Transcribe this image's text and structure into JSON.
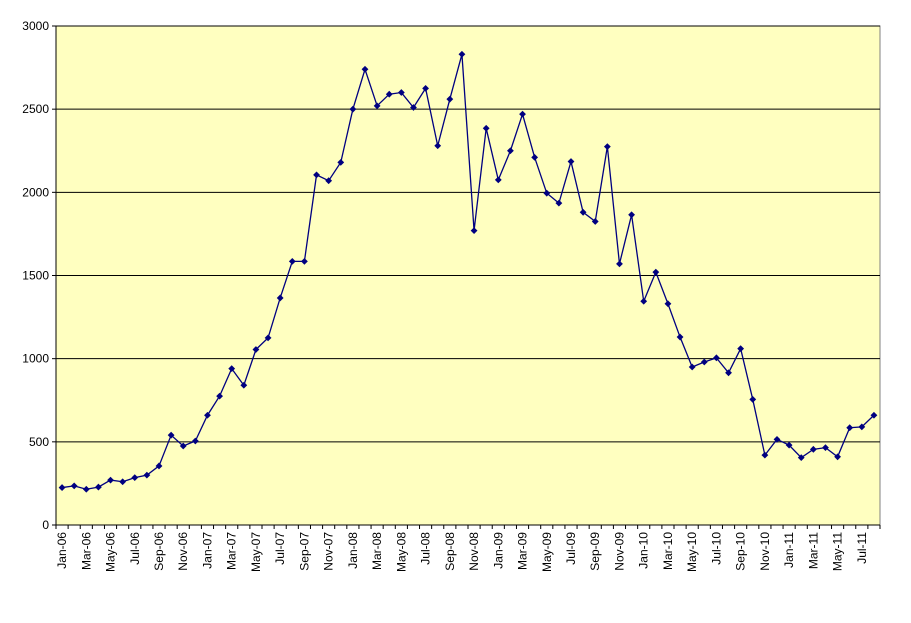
{
  "chart_data": {
    "type": "line",
    "title": "",
    "xlabel": "",
    "ylabel": "",
    "ylim": [
      0,
      3000
    ],
    "yticks": [
      0,
      500,
      1000,
      1500,
      2000,
      2500,
      3000
    ],
    "grid": "horizontal",
    "legend": "none",
    "colors": {
      "plot_background": "#ffffc0",
      "line": "#000080",
      "marker": "#000080",
      "grid": "#000000"
    },
    "x": [
      "Jan-06",
      "Feb-06",
      "Mar-06",
      "Apr-06",
      "May-06",
      "Jun-06",
      "Jul-06",
      "Aug-06",
      "Sep-06",
      "Oct-06",
      "Nov-06",
      "Dec-06",
      "Jan-07",
      "Feb-07",
      "Mar-07",
      "Apr-07",
      "May-07",
      "Jun-07",
      "Jul-07",
      "Aug-07",
      "Sep-07",
      "Oct-07",
      "Nov-07",
      "Dec-07",
      "Jan-08",
      "Feb-08",
      "Mar-08",
      "Apr-08",
      "May-08",
      "Jun-08",
      "Jul-08",
      "Aug-08",
      "Sep-08",
      "Oct-08",
      "Nov-08",
      "Dec-08",
      "Jan-09",
      "Feb-09",
      "Mar-09",
      "Apr-09",
      "May-09",
      "Jun-09",
      "Jul-09",
      "Aug-09",
      "Sep-09",
      "Oct-09",
      "Nov-09",
      "Dec-09",
      "Jan-10",
      "Feb-10",
      "Mar-10",
      "Apr-10",
      "May-10",
      "Jun-10",
      "Jul-10",
      "Aug-10",
      "Sep-10",
      "Oct-10",
      "Nov-10",
      "Dec-10",
      "Jan-11",
      "Feb-11",
      "Mar-11",
      "Apr-11",
      "May-11",
      "Jun-11",
      "Jul-11",
      "Aug-11"
    ],
    "x_tick_labels": [
      "Jan-06",
      "Mar-06",
      "May-06",
      "Jul-06",
      "Sep-06",
      "Nov-06",
      "Jan-07",
      "Mar-07",
      "May-07",
      "Jul-07",
      "Sep-07",
      "Nov-07",
      "Jan-08",
      "Mar-08",
      "May-08",
      "Jul-08",
      "Sep-08",
      "Nov-08",
      "Jan-09",
      "Mar-09",
      "May-09",
      "Jul-09",
      "Sep-09",
      "Nov-09",
      "Jan-10",
      "Mar-10",
      "May-10",
      "Jul-10",
      "Sep-10",
      "Nov-10",
      "Jan-11",
      "Mar-11",
      "May-11",
      "Jul-11"
    ],
    "series": [
      {
        "values": [
          225,
          235,
          215,
          228,
          270,
          260,
          285,
          300,
          355,
          540,
          475,
          505,
          660,
          775,
          940,
          840,
          1055,
          1125,
          1365,
          1585,
          1585,
          2105,
          2070,
          2180,
          2500,
          2740,
          2520,
          2590,
          2600,
          2510,
          2625,
          2280,
          2560,
          2830,
          1770,
          2385,
          2075,
          2250,
          2470,
          2210,
          1995,
          1935,
          2185,
          1880,
          1825,
          2275,
          1570,
          1865,
          1345,
          1520,
          1330,
          1130,
          950,
          980,
          1005,
          915,
          1060,
          755,
          420,
          515,
          480,
          405,
          455,
          465,
          410,
          585,
          590,
          660
        ]
      }
    ]
  }
}
